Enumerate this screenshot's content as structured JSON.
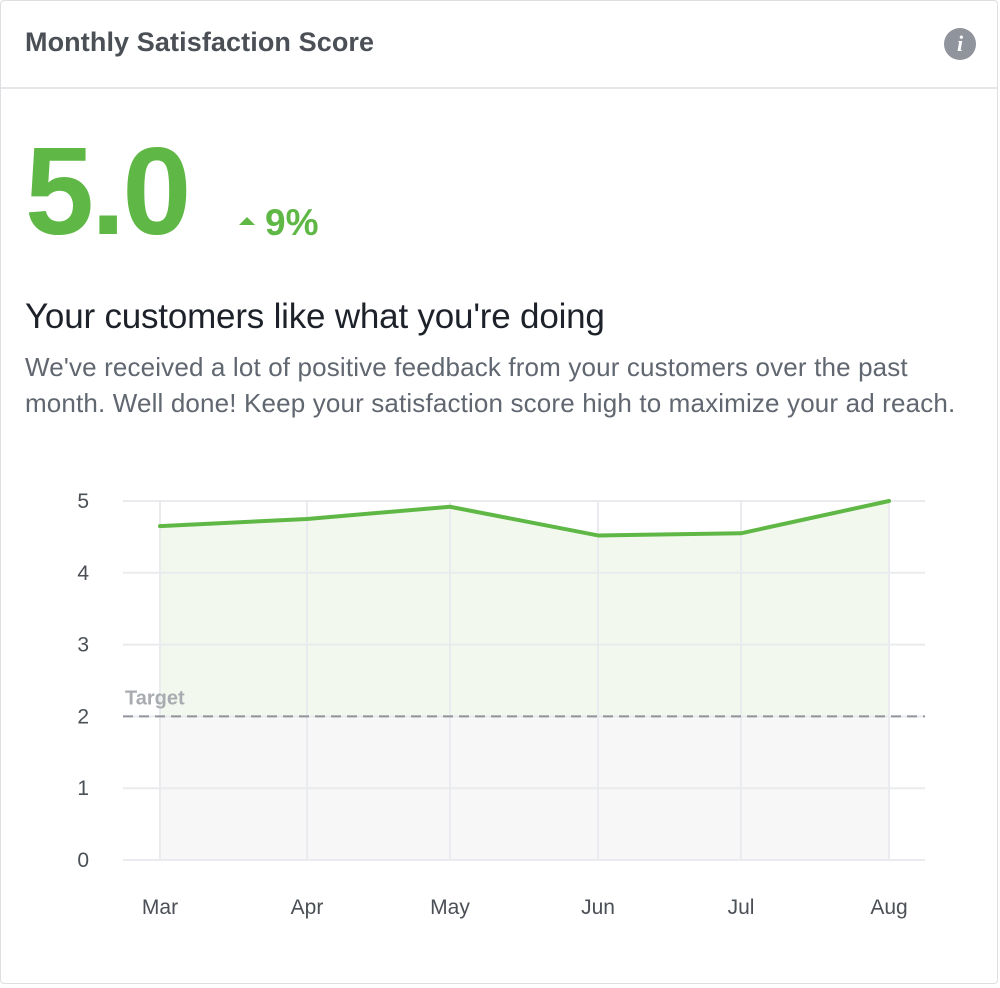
{
  "header": {
    "title": "Monthly Satisfaction Score",
    "info_icon_glyph": "i"
  },
  "summary": {
    "score": "5.0",
    "change": "9%",
    "change_direction": "up"
  },
  "message": {
    "headline": "Your customers like what you're doing",
    "body": "We've received a lot of positive feedback from your customers over the past month. Well done! Keep your satisfaction score high to maximize your ad reach."
  },
  "colors": {
    "accent": "#5fb845",
    "area_fill": "#f2f8ee",
    "below_target_fill": "#f7f7f7",
    "grid": "#e9ebee",
    "target_line": "#90949c",
    "axis_text": "#4b4f56"
  },
  "chart_data": {
    "type": "area",
    "categories": [
      "Mar",
      "Apr",
      "May",
      "Jun",
      "Jul",
      "Aug"
    ],
    "series": [
      {
        "values": [
          4.65,
          4.75,
          4.92,
          4.52,
          4.55,
          5.0
        ]
      }
    ],
    "ylim": [
      0,
      5
    ],
    "yticks": [
      0,
      1,
      2,
      3,
      4,
      5
    ],
    "target": {
      "label": "Target",
      "value": 2
    },
    "grid": true
  }
}
